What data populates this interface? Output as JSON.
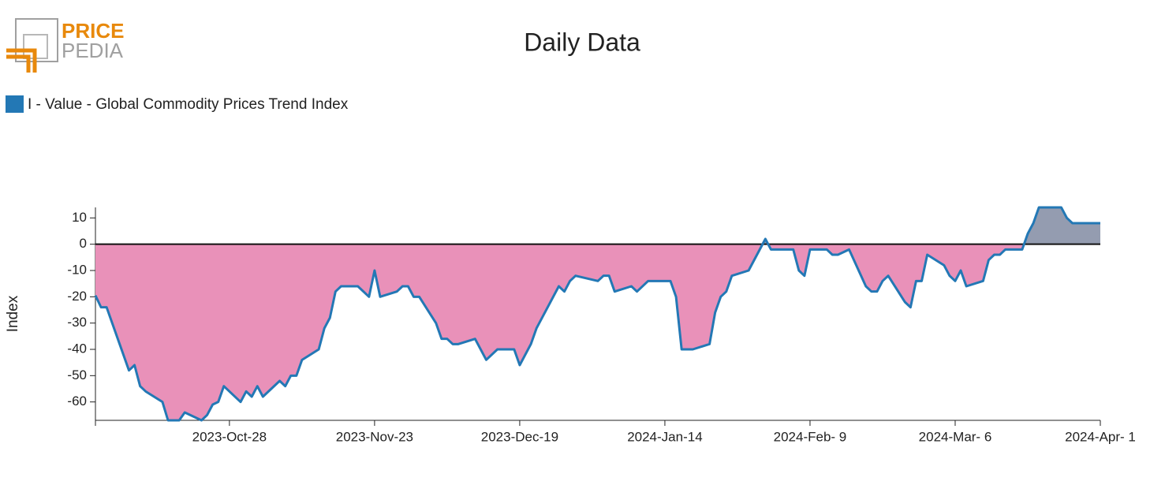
{
  "logo": {
    "line1": "PRICE",
    "line2": "PEDIA"
  },
  "chart_data": {
    "type": "area",
    "title": "Daily Data",
    "y_label": "Index",
    "x": [
      "2023-10-04",
      "2023-10-05",
      "2023-10-06",
      "2023-10-10",
      "2023-10-11",
      "2023-10-12",
      "2023-10-13",
      "2023-10-16",
      "2023-10-17",
      "2023-10-19",
      "2023-10-20",
      "2023-10-23",
      "2023-10-24",
      "2023-10-25",
      "2023-10-26",
      "2023-10-27",
      "2023-10-30",
      "2023-10-31",
      "2023-11-01",
      "2023-11-02",
      "2023-11-03",
      "2023-11-06",
      "2023-11-07",
      "2023-11-08",
      "2023-11-09",
      "2023-11-10",
      "2023-11-13",
      "2023-11-14",
      "2023-11-15",
      "2023-11-16",
      "2023-11-17",
      "2023-11-20",
      "2023-11-22",
      "2023-11-23",
      "2023-11-24",
      "2023-11-27",
      "2023-11-28",
      "2023-11-29",
      "2023-11-30",
      "2023-12-01",
      "2023-12-04",
      "2023-12-05",
      "2023-12-06",
      "2023-12-07",
      "2023-12-08",
      "2023-12-11",
      "2023-12-13",
      "2023-12-15",
      "2023-12-18",
      "2023-12-19",
      "2023-12-21",
      "2023-12-22",
      "2023-12-26",
      "2023-12-27",
      "2023-12-28",
      "2023-12-29",
      "2024-01-02",
      "2024-01-03",
      "2024-01-04",
      "2024-01-05",
      "2024-01-08",
      "2024-01-09",
      "2024-01-11",
      "2024-01-15",
      "2024-01-16",
      "2024-01-17",
      "2024-01-19",
      "2024-01-22",
      "2024-01-23",
      "2024-01-24",
      "2024-01-25",
      "2024-01-26",
      "2024-01-29",
      "2024-02-01",
      "2024-02-02",
      "2024-02-06",
      "2024-02-07",
      "2024-02-08",
      "2024-02-09",
      "2024-02-12",
      "2024-02-13",
      "2024-02-14",
      "2024-02-16",
      "2024-02-19",
      "2024-02-20",
      "2024-02-21",
      "2024-02-22",
      "2024-02-23",
      "2024-02-26",
      "2024-02-27",
      "2024-02-28",
      "2024-02-29",
      "2024-03-01",
      "2024-03-04",
      "2024-03-05",
      "2024-03-06",
      "2024-03-07",
      "2024-03-08",
      "2024-03-11",
      "2024-03-12",
      "2024-03-13",
      "2024-03-14",
      "2024-03-15",
      "2024-03-18",
      "2024-03-19",
      "2024-03-20",
      "2024-03-21",
      "2024-03-25",
      "2024-03-26",
      "2024-03-27",
      "2024-04-01"
    ],
    "series": [
      {
        "name": "I - Value - Global Commodity Prices Trend Index",
        "color": "#2378b5",
        "values": [
          -19.5,
          -24,
          -24,
          -48,
          -46,
          -54,
          -56,
          -60,
          -67,
          -67,
          -64,
          -67,
          -65,
          -61,
          -60,
          -54,
          -60,
          -56,
          -58,
          -54,
          -58,
          -52,
          -54,
          -50,
          -50,
          -44,
          -40,
          -32,
          -28,
          -18,
          -16,
          -16,
          -20,
          -10,
          -20,
          -18,
          -16,
          -16,
          -20,
          -20,
          -30,
          -36,
          -36,
          -38,
          -38,
          -36,
          -44,
          -40,
          -40,
          -46,
          -38,
          -32,
          -16,
          -18,
          -14,
          -12,
          -14,
          -12,
          -12,
          -18,
          -16,
          -18,
          -14,
          -14,
          -20,
          -40,
          -40,
          -38,
          -26,
          -20,
          -18,
          -12,
          -10,
          2,
          -2,
          -2,
          -10,
          -12,
          -2,
          -2,
          -4,
          -4,
          -2,
          -16,
          -18,
          -18,
          -14,
          -12,
          -22,
          -24,
          -14,
          -14,
          -4,
          -8,
          -12,
          -14,
          -10,
          -16,
          -14,
          -6,
          -4,
          -4,
          -2,
          -2,
          4,
          8,
          14,
          14,
          10,
          8,
          8
        ]
      }
    ],
    "positive_fill": "#949cb0",
    "negative_fill": "#e991b9",
    "reference_line": 0,
    "legend_color": "#2378b5",
    "xlim": [
      "2023-10-04",
      "2024-04-01"
    ],
    "xticks": [
      {
        "value": "2023-10-28",
        "label": "2023-Oct-28"
      },
      {
        "value": "2023-11-23",
        "label": "2023-Nov-23"
      },
      {
        "value": "2023-12-19",
        "label": "2023-Dec-19"
      },
      {
        "value": "2024-01-14",
        "label": "2024-Jan-14"
      },
      {
        "value": "2024-02-09",
        "label": "2024-Feb- 9"
      },
      {
        "value": "2024-03-06",
        "label": "2024-Mar- 6"
      },
      {
        "value": "2024-04-01",
        "label": "2024-Apr- 1"
      }
    ],
    "ylim": [
      -67,
      14
    ],
    "yticks": [
      -60,
      -50,
      -40,
      -30,
      -20,
      -10,
      0,
      10
    ],
    "grid": false
  }
}
